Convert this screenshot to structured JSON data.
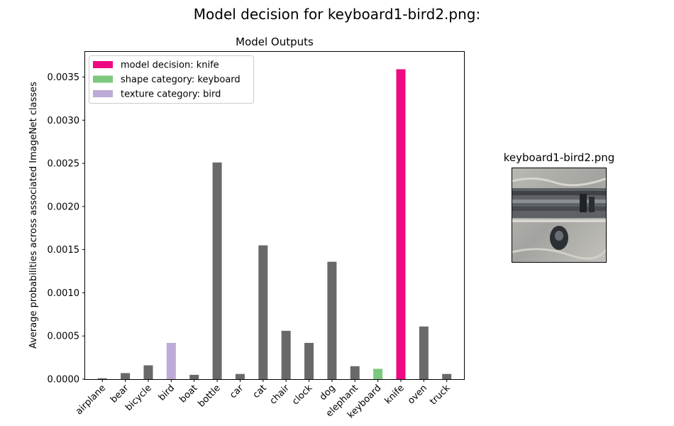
{
  "figure": {
    "title": "Model decision for keyboard1-bird2.png:"
  },
  "image_panel": {
    "title": "keyboard1-bird2.png"
  },
  "chart_data": {
    "type": "bar",
    "title": "Model Outputs",
    "xlabel": "",
    "ylabel": "Average probabilities across associated ImageNet classes",
    "ylim": [
      0,
      0.0038
    ],
    "yticks": [
      "0.0000",
      "0.0005",
      "0.0010",
      "0.0015",
      "0.0020",
      "0.0025",
      "0.0030",
      "0.0035"
    ],
    "categories": [
      "airplane",
      "bear",
      "bicycle",
      "bird",
      "boat",
      "bottle",
      "car",
      "cat",
      "chair",
      "clock",
      "dog",
      "elephant",
      "keyboard",
      "knife",
      "oven",
      "truck"
    ],
    "values": [
      1e-05,
      7e-05,
      0.00016,
      0.00042,
      5e-05,
      0.00251,
      6e-05,
      0.00155,
      0.00056,
      0.00042,
      0.00136,
      0.00015,
      0.00012,
      0.00359,
      0.00061,
      6e-05
    ],
    "colors": [
      "#696969",
      "#696969",
      "#696969",
      "#bcabd6",
      "#696969",
      "#696969",
      "#696969",
      "#696969",
      "#696969",
      "#696969",
      "#696969",
      "#696969",
      "#7ec87e",
      "#ee0a82",
      "#696969",
      "#696969"
    ],
    "legend": {
      "placement": "top-left",
      "entries": [
        {
          "label": "model decision: knife",
          "color": "#ee0a82"
        },
        {
          "label": "shape category: keyboard",
          "color": "#7ec87e"
        },
        {
          "label": "texture category: bird",
          "color": "#bcabd6"
        }
      ]
    },
    "grid": false
  }
}
